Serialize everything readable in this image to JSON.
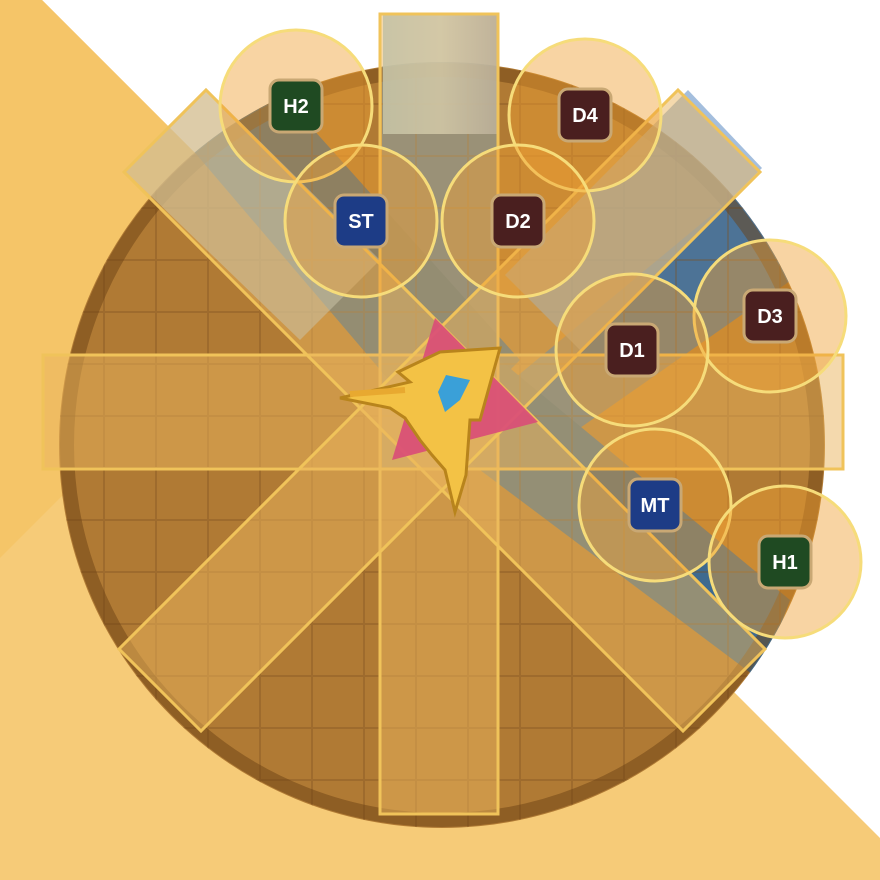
{
  "colors": {
    "background": "#ffffff",
    "danger_zone": "#f2b84b",
    "arena_gold": "#b07a34",
    "arena_blue": "#4b6f92",
    "cleave_fill": "#e9b35b",
    "cleave_border": "#f0c35a",
    "aoe_fill": "#ef9f32",
    "aoe_border": "#f6dc7a",
    "tank": "#1d3c86",
    "healer": "#1f4a22",
    "dps": "#4a1f1f",
    "boss_triangle": "#d94b78",
    "boss_sigil": "#f3c245",
    "boss_core": "#3aa0d8"
  },
  "boss": {
    "icon": "winged-sigil-icon"
  },
  "party": [
    {
      "role": "healer",
      "label": "H2"
    },
    {
      "role": "dps",
      "label": "D4"
    },
    {
      "role": "tank",
      "label": "ST"
    },
    {
      "role": "dps",
      "label": "D2"
    },
    {
      "role": "dps",
      "label": "D3"
    },
    {
      "role": "dps",
      "label": "D1"
    },
    {
      "role": "tank",
      "label": "MT"
    },
    {
      "role": "healer",
      "label": "H1"
    }
  ]
}
